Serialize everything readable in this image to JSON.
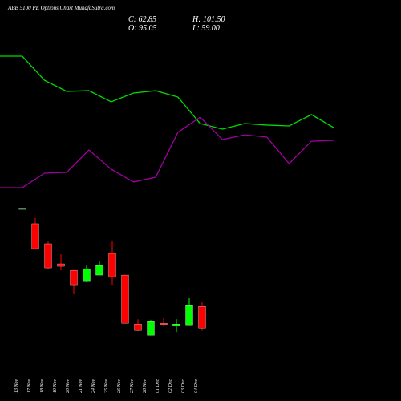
{
  "chart_data": [
    {
      "type": "line",
      "ylim": [
        0,
        100
      ],
      "series": [
        {
          "color": "#00dd00",
          "values": [
            85.7,
            85.7,
            71.4,
            64.8,
            65.2,
            58.6,
            63.8,
            65.2,
            61.4,
            45.7,
            42.4,
            45.7,
            44.8,
            44.3,
            51.0,
            43.3
          ]
        },
        {
          "color": "#a000a0",
          "values": [
            7.6,
            7.6,
            16.2,
            16.7,
            30.0,
            18.6,
            11.0,
            13.8,
            40.5,
            49.5,
            36.2,
            39.0,
            37.6,
            21.9,
            35.2,
            35.7
          ]
        }
      ]
    },
    {
      "type": "candlestick",
      "title": "ABB 5100 PE Options Chart MunafaSutra.com",
      "annotations": [
        "C: 62.85",
        "H: 101.50",
        "O: 95.05",
        "L: 59.00"
      ],
      "ylim": [
        50,
        250
      ],
      "up_color": "#00ff00",
      "down_color": "#ff0000",
      "categories": [
        "13 Nov",
        "17 Nov",
        "18 Nov",
        "19 Nov",
        "20 Nov",
        "21 Nov",
        "24 Nov",
        "25 Nov",
        "26 Nov",
        "27 Nov",
        "28 Nov",
        "01 Dec",
        "02 Dec",
        "03 Dec",
        "04 Dec"
      ],
      "open": [
        240,
        217.9,
        188.1,
        158.3,
        148.7,
        133.2,
        141.6,
        173.8,
        141.6,
        68.8,
        52.1,
        70.0,
        66.4,
        67.6,
        95.05
      ],
      "high": [
        241,
        226.3,
        191.7,
        172.6,
        148.7,
        155.9,
        161.9,
        192.9,
        141.6,
        75.9,
        74.8,
        78.4,
        76.0,
        108.2,
        101.5
      ],
      "low": [
        240,
        180.9,
        151.1,
        148.7,
        114.1,
        132.0,
        141.6,
        127.3,
        70.0,
        58.0,
        52.1,
        65.2,
        56.9,
        67.6,
        59.0
      ],
      "close": [
        241,
        180.9,
        152.3,
        154.7,
        127.3,
        151.1,
        155.9,
        139.2,
        70.0,
        59.2,
        73.6,
        68.8,
        68.8,
        97.4,
        62.85
      ]
    }
  ]
}
